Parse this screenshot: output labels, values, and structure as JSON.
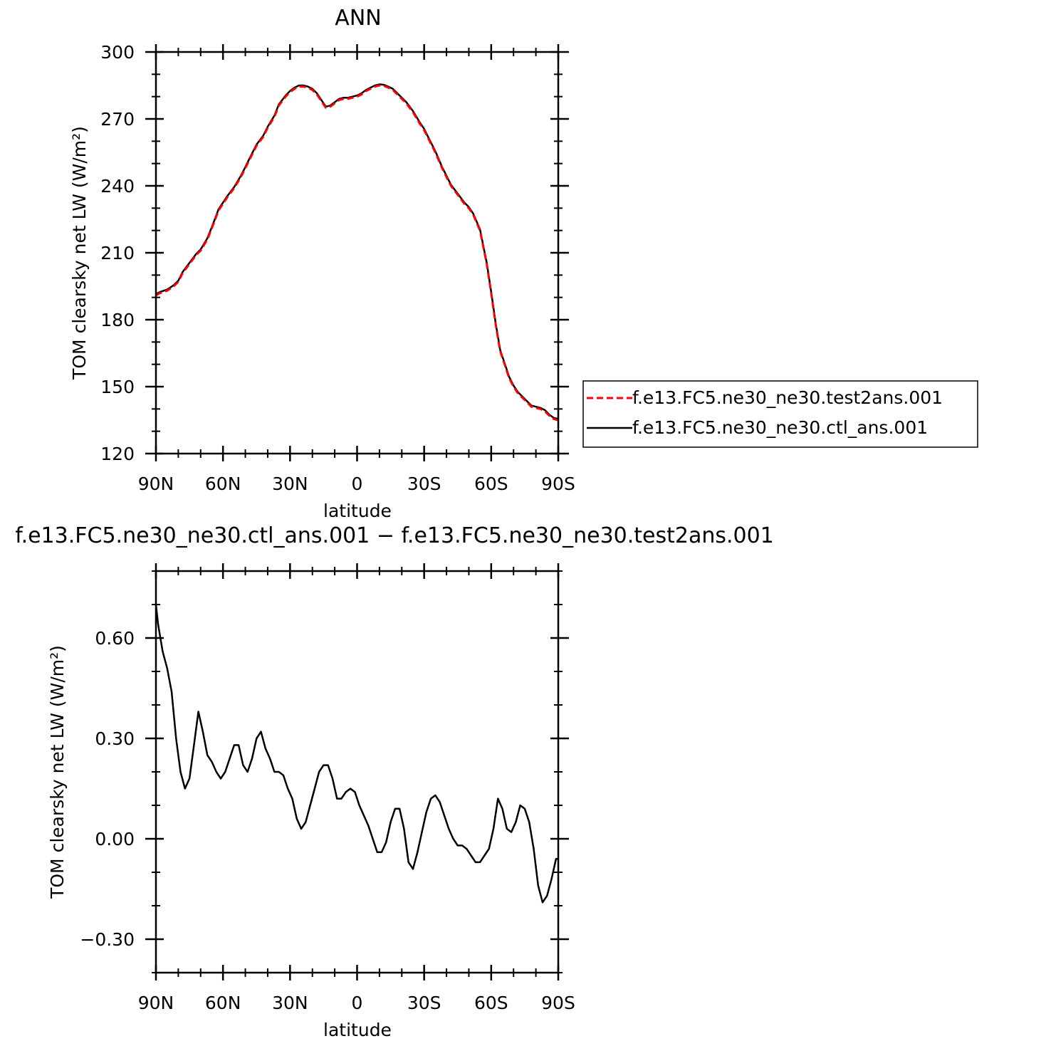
{
  "chart_data": [
    {
      "type": "line",
      "title": "ANN",
      "xlabel": "latitude",
      "ylabel": "TOM clearsky net LW (W/m²)",
      "xlim": [
        90,
        -90
      ],
      "ylim": [
        120,
        300
      ],
      "xticks": [
        90,
        60,
        30,
        0,
        -30,
        -60,
        -90
      ],
      "xtick_labels": [
        "90N",
        "60N",
        "30N",
        "0",
        "30S",
        "60S",
        "90S"
      ],
      "yticks": [
        120,
        150,
        180,
        210,
        240,
        270,
        300
      ],
      "ytick_labels": [
        "120",
        "150",
        "180",
        "210",
        "240",
        "270",
        "300"
      ],
      "legend": "right",
      "series": [
        {
          "name": "f.e13.FC5.ne30_ne30.test2ans.001",
          "color": "#ff0000",
          "style": "dashed",
          "x": [
            90,
            88,
            85,
            82,
            80,
            78,
            75,
            72,
            70,
            67,
            65,
            62,
            60,
            58,
            55,
            52,
            50,
            48,
            45,
            42,
            40,
            37,
            35,
            32,
            30,
            28,
            26,
            24,
            22,
            20,
            18,
            16,
            14,
            12,
            10,
            8,
            6,
            4,
            2,
            0,
            -2,
            -4,
            -6,
            -8,
            -10,
            -12,
            -14,
            -16,
            -18,
            -20,
            -22,
            -25,
            -28,
            -30,
            -32,
            -35,
            -38,
            -40,
            -42,
            -45,
            -48,
            -50,
            -52,
            -55,
            -58,
            -60,
            -62,
            -64,
            -66,
            -68,
            -70,
            -72,
            -74,
            -76,
            -78,
            -80,
            -82,
            -84,
            -86,
            -88,
            -90
          ],
          "values": [
            191,
            192,
            193,
            195,
            197,
            201,
            205,
            209,
            211,
            216,
            221,
            229,
            232,
            235,
            239,
            244,
            248,
            252,
            258,
            262,
            266,
            271,
            276,
            280,
            282,
            283.5,
            284.5,
            284.5,
            284,
            283,
            281,
            278,
            275,
            275.5,
            277,
            278.5,
            279,
            279,
            279.5,
            280,
            281,
            282.5,
            283.5,
            284.5,
            285,
            284.8,
            284,
            283,
            281,
            279,
            277,
            273,
            268,
            265,
            261,
            255,
            248,
            244,
            240,
            236,
            232,
            230,
            227,
            220,
            205,
            192,
            178,
            166,
            160,
            154,
            150,
            147,
            145,
            143,
            141,
            140.5,
            140,
            139,
            137,
            135.5,
            135
          ]
        },
        {
          "name": "f.e13.FC5.ne30_ne30.ctl_ans.001",
          "color": "#000000",
          "style": "solid",
          "x": [
            90,
            88,
            85,
            82,
            80,
            78,
            75,
            72,
            70,
            67,
            65,
            62,
            60,
            58,
            55,
            52,
            50,
            48,
            45,
            42,
            40,
            37,
            35,
            32,
            30,
            28,
            26,
            24,
            22,
            20,
            18,
            16,
            14,
            12,
            10,
            8,
            6,
            4,
            2,
            0,
            -2,
            -4,
            -6,
            -8,
            -10,
            -12,
            -14,
            -16,
            -18,
            -20,
            -22,
            -25,
            -28,
            -30,
            -32,
            -35,
            -38,
            -40,
            -42,
            -45,
            -48,
            -50,
            -52,
            -55,
            -58,
            -60,
            -62,
            -64,
            -66,
            -68,
            -70,
            -72,
            -74,
            -76,
            -78,
            -80,
            -82,
            -84,
            -86,
            -88,
            -90
          ],
          "values": [
            191.5,
            192.5,
            193.5,
            195.5,
            197.5,
            201.5,
            205.5,
            209.5,
            211.5,
            216.5,
            221.5,
            229.5,
            232.5,
            235.5,
            239.5,
            244.5,
            248.5,
            252.5,
            258.5,
            262.5,
            266.5,
            271.5,
            276.5,
            280.5,
            282.5,
            284,
            285,
            285,
            284.5,
            283.5,
            281.5,
            278.5,
            275.5,
            276,
            277.5,
            279,
            279.5,
            279.5,
            280,
            280.5,
            281.5,
            283,
            284,
            285,
            285.5,
            285.3,
            284.5,
            283.5,
            281.5,
            279.5,
            277.5,
            273.5,
            268.5,
            265.5,
            261.5,
            255.5,
            248.5,
            244.5,
            240.5,
            236.5,
            232.5,
            230.5,
            227.5,
            220.5,
            205.5,
            192.5,
            178.5,
            166.5,
            160.5,
            154.5,
            150.5,
            147.5,
            145.5,
            143.5,
            141.5,
            141,
            140.5,
            139.5,
            137.5,
            136,
            135.5
          ]
        }
      ]
    },
    {
      "type": "line",
      "title": "f.e13.FC5.ne30_ne30.ctl_ans.001 − f.e13.FC5.ne30_ne30.test2ans.001",
      "xlabel": "latitude",
      "ylabel": "TOM clearsky net LW (W/m²)",
      "xlim": [
        90,
        -90
      ],
      "ylim": [
        -0.4,
        0.8
      ],
      "xticks": [
        90,
        60,
        30,
        0,
        -30,
        -60,
        -90
      ],
      "xtick_labels": [
        "90N",
        "60N",
        "30N",
        "0",
        "30S",
        "60S",
        "90S"
      ],
      "yticks": [
        -0.3,
        0.0,
        0.3,
        0.6
      ],
      "ytick_labels": [
        "−0.30",
        "0.00",
        "0.30",
        "0.60"
      ],
      "series": [
        {
          "color": "#000000",
          "style": "solid",
          "x": [
            90,
            89,
            87,
            85,
            83,
            81,
            79,
            77,
            75,
            73,
            71,
            69,
            67,
            65,
            63,
            61,
            59,
            57,
            55,
            53,
            51,
            49,
            47,
            45,
            43,
            41,
            39,
            37,
            35,
            33,
            31,
            29,
            27,
            25,
            23,
            21,
            19,
            17,
            15,
            13,
            11,
            9,
            7,
            5,
            3,
            1,
            -1,
            -3,
            -5,
            -7,
            -9,
            -11,
            -13,
            -15,
            -17,
            -19,
            -21,
            -23,
            -25,
            -27,
            -29,
            -31,
            -33,
            -35,
            -37,
            -39,
            -41,
            -43,
            -45,
            -47,
            -49,
            -51,
            -53,
            -55,
            -57,
            -59,
            -61,
            -63,
            -65,
            -67,
            -69,
            -71,
            -73,
            -75,
            -77,
            -79,
            -81,
            -83,
            -85,
            -87,
            -89,
            -90
          ],
          "values": [
            0.7,
            0.64,
            0.56,
            0.51,
            0.44,
            0.3,
            0.2,
            0.15,
            0.18,
            0.28,
            0.38,
            0.32,
            0.25,
            0.23,
            0.2,
            0.18,
            0.2,
            0.24,
            0.28,
            0.28,
            0.22,
            0.2,
            0.24,
            0.3,
            0.32,
            0.27,
            0.24,
            0.2,
            0.2,
            0.19,
            0.15,
            0.12,
            0.06,
            0.03,
            0.05,
            0.1,
            0.15,
            0.2,
            0.22,
            0.22,
            0.18,
            0.12,
            0.12,
            0.14,
            0.15,
            0.14,
            0.1,
            0.07,
            0.04,
            0.0,
            -0.04,
            -0.04,
            -0.01,
            0.05,
            0.09,
            0.09,
            0.03,
            -0.07,
            -0.09,
            -0.04,
            0.02,
            0.08,
            0.12,
            0.13,
            0.11,
            0.07,
            0.03,
            0.0,
            -0.02,
            -0.02,
            -0.03,
            -0.05,
            -0.07,
            -0.07,
            -0.05,
            -0.03,
            0.03,
            0.12,
            0.09,
            0.03,
            0.02,
            0.05,
            0.1,
            0.09,
            0.05,
            -0.03,
            -0.14,
            -0.19,
            -0.17,
            -0.12,
            -0.06,
            -0.06
          ]
        }
      ]
    }
  ]
}
